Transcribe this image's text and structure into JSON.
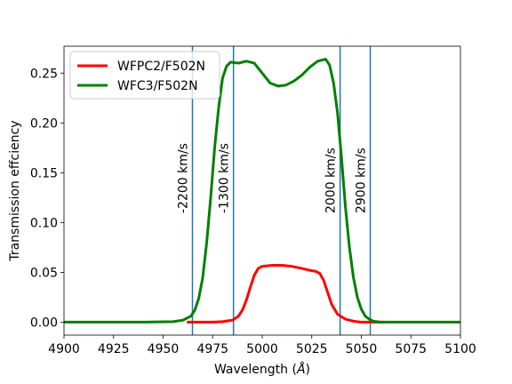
{
  "chart_data": {
    "type": "line",
    "title": "",
    "xlabel": "Wavelength ($\\AA$)",
    "xlabel_text": "Wavelength (",
    "xlabel_unit": "Å",
    "xlabel_close": ")",
    "ylabel": "Transmission effciency",
    "xlim": [
      4900,
      5100
    ],
    "ylim": [
      -0.013,
      0.277
    ],
    "xticks": [
      4900,
      4925,
      4950,
      4975,
      5000,
      5025,
      5050,
      5075,
      5100
    ],
    "xtick_labels": [
      "4900",
      "4925",
      "4950",
      "4975",
      "5000",
      "5025",
      "5050",
      "5075",
      "5100"
    ],
    "yticks": [
      0.0,
      0.05,
      0.1,
      0.15,
      0.2,
      0.25
    ],
    "ytick_labels": [
      "0.00",
      "0.05",
      "0.10",
      "0.15",
      "0.20",
      "0.25"
    ],
    "grid": false,
    "legend_position": "top-left",
    "series": [
      {
        "name": "WFPC2/F502N",
        "color": "#ff0000",
        "x": [
          4962,
          4970,
          4975,
          4980,
          4985,
          4988,
          4990,
          4992,
          4994,
          4996,
          4998,
          5000,
          5005,
          5010,
          5015,
          5020,
          5024,
          5027,
          5029,
          5031,
          5033,
          5035,
          5038,
          5042,
          5046,
          5050,
          5055,
          5060,
          5062
        ],
        "y": [
          0.0,
          0.0,
          0.0,
          0.0005,
          0.002,
          0.006,
          0.012,
          0.022,
          0.035,
          0.047,
          0.054,
          0.056,
          0.057,
          0.057,
          0.056,
          0.054,
          0.052,
          0.051,
          0.049,
          0.042,
          0.03,
          0.018,
          0.008,
          0.003,
          0.001,
          0.0,
          0.0,
          0.0,
          0.0
        ]
      },
      {
        "name": "WFC3/F502N",
        "color": "#008000",
        "x": [
          4900,
          4940,
          4955,
          4960,
          4964,
          4966,
          4968,
          4970,
          4972,
          4974,
          4976,
          4978,
          4980,
          4982,
          4984,
          4988,
          4992,
          4996,
          5000,
          5004,
          5008,
          5012,
          5016,
          5020,
          5024,
          5028,
          5032,
          5034,
          5036,
          5038,
          5040,
          5042,
          5044,
          5046,
          5048,
          5050,
          5052,
          5054,
          5056,
          5060,
          5070,
          5100
        ],
        "y": [
          0.0,
          0.0,
          0.0005,
          0.002,
          0.006,
          0.012,
          0.024,
          0.045,
          0.08,
          0.125,
          0.175,
          0.215,
          0.245,
          0.257,
          0.261,
          0.26,
          0.262,
          0.26,
          0.25,
          0.24,
          0.237,
          0.238,
          0.242,
          0.248,
          0.256,
          0.262,
          0.264,
          0.258,
          0.24,
          0.21,
          0.165,
          0.115,
          0.075,
          0.045,
          0.025,
          0.013,
          0.006,
          0.003,
          0.001,
          0.0,
          0.0,
          0.0
        ]
      }
    ],
    "vertical_lines": [
      {
        "x": 4964.8,
        "label": "-2200 km/s",
        "color": "#1f77b4"
      },
      {
        "x": 4985.5,
        "label": "-1300 km/s",
        "color": "#1f77b4"
      },
      {
        "x": 5039.3,
        "label": "2000 km/s",
        "color": "#1f77b4"
      },
      {
        "x": 5054.5,
        "label": "2900 km/s",
        "color": "#1f77b4"
      }
    ]
  }
}
